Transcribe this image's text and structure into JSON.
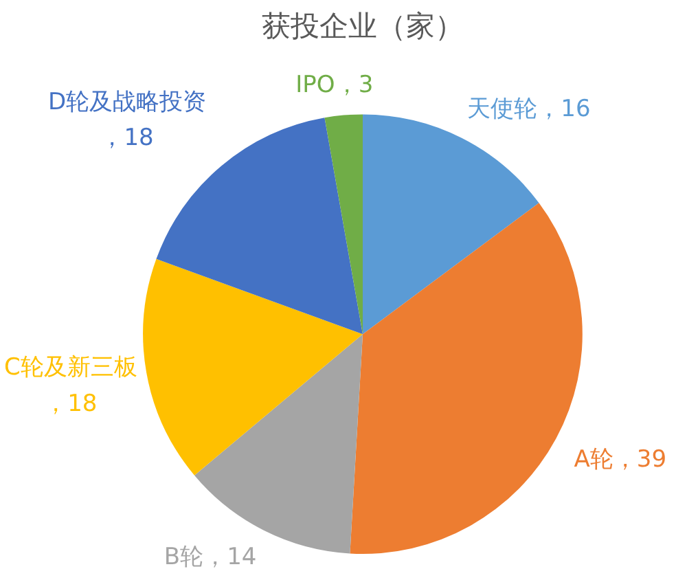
{
  "chart_data": {
    "type": "pie",
    "title": "获投企业（家）",
    "categories": [
      "天使轮",
      "A轮",
      "B轮",
      "C轮及新三板",
      "D轮及战略投资",
      "IPO"
    ],
    "values": [
      16,
      39,
      14,
      18,
      18,
      3
    ],
    "value_labels": [
      "，16",
      "，39",
      "，14",
      "，18",
      "，18",
      "，3"
    ],
    "colors": [
      "#5b9bd5",
      "#ed7d31",
      "#a5a5a5",
      "#ffc000",
      "#4472c4",
      "#70ad47"
    ]
  }
}
